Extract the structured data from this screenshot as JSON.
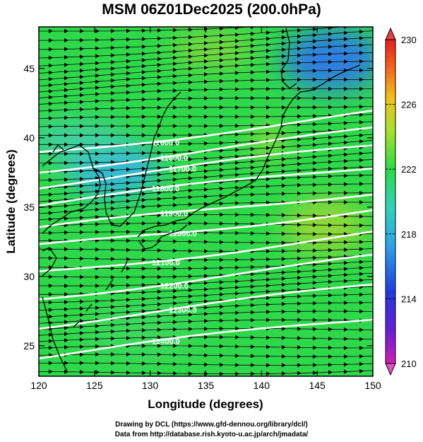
{
  "title": "MSM 06Z01Dec2025 (200.0hPa)",
  "x_axis": {
    "label": "Longitude (degrees)",
    "ticks": [
      "120",
      "125",
      "130",
      "135",
      "140",
      "145",
      "150"
    ]
  },
  "y_axis": {
    "label": "Latitude  (degrees)",
    "ticks": [
      "25",
      "30",
      "35",
      "40",
      "45"
    ]
  },
  "colorbar": {
    "ticks": [
      "230",
      "226",
      "222",
      "218",
      "214",
      "210"
    ]
  },
  "contour_labels": [
    "11600.0",
    "11600.0",
    "11700.0",
    "11800.0",
    "11900.0",
    "12000.0",
    "12100.0",
    "12200.0",
    "12300.0",
    "12400.0"
  ],
  "footer": {
    "line1": "Drawing by DCL (https://www.gfd-dennou.org/library/dcl/)",
    "line2": "Data from http://database.rish.kyoto-u.ac.jp/arch/jmadata/"
  },
  "colors": {
    "blue": "#2f6fdc",
    "cyan": "#33c8c0",
    "green": "#2fd84a",
    "yellowgreen": "#9ae040",
    "yellow": "#d8e030"
  }
}
